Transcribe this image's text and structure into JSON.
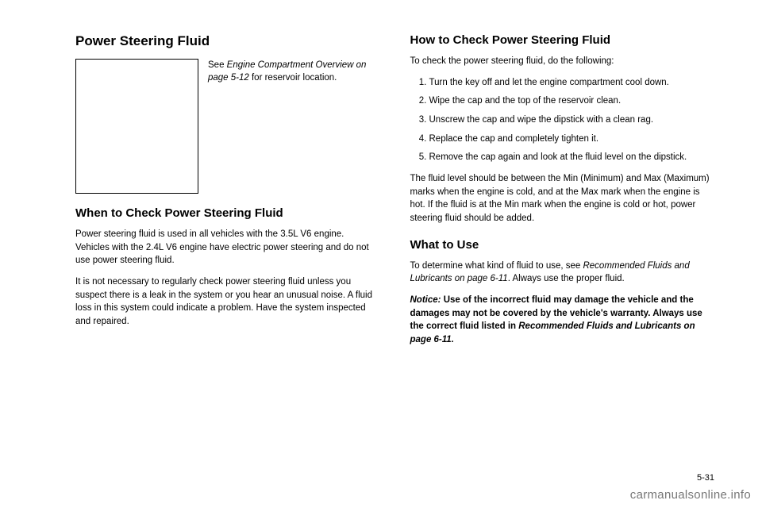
{
  "left": {
    "h1": "Power Steering Fluid",
    "img_caption_1": "See ",
    "img_caption_italic": "Engine Compartment Overview on page 5-12",
    "img_caption_2": " for reservoir location.",
    "h2": "When to Check Power Steering Fluid",
    "p1": "Power steering fluid is used in all vehicles with the 3.5L V6 engine. Vehicles with the 2.4L V6 engine have electric power steering and do not use power steering fluid.",
    "p2": "It is not necessary to regularly check power steering fluid unless you suspect there is a leak in the system or you hear an unusual noise. A fluid loss in this system could indicate a problem. Have the system inspected and repaired."
  },
  "right": {
    "h2a": "How to Check Power Steering Fluid",
    "intro": "To check the power steering fluid, do the following:",
    "steps": [
      "Turn the key off and let the engine compartment cool down.",
      "Wipe the cap and the top of the reservoir clean.",
      "Unscrew the cap and wipe the dipstick with a clean rag.",
      "Replace the cap and completely tighten it.",
      "Remove the cap again and look at the fluid level on the dipstick."
    ],
    "p_after": "The fluid level should be between the Min (Minimum) and Max (Maximum) marks when the engine is cold, and at the Max mark when the engine is hot. If the fluid is at the Min mark when the engine is cold or hot, power steering fluid should be added.",
    "h2b": "What to Use",
    "p_use_1": "To determine what kind of fluid to use, see ",
    "p_use_italic": "Recommended Fluids and Lubricants on page 6-11",
    "p_use_2": ". Always use the proper fluid.",
    "notice_label": "Notice:",
    "notice_1": "Use of the incorrect fluid may damage the vehicle and the damages may not be covered by the vehicle's warranty. Always use the correct fluid listed in ",
    "notice_italic": "Recommended Fluids and Lubricants on page 6-11.",
    "notice_2": ""
  },
  "page_num": "5-31",
  "watermark": "carmanualsonline.info"
}
